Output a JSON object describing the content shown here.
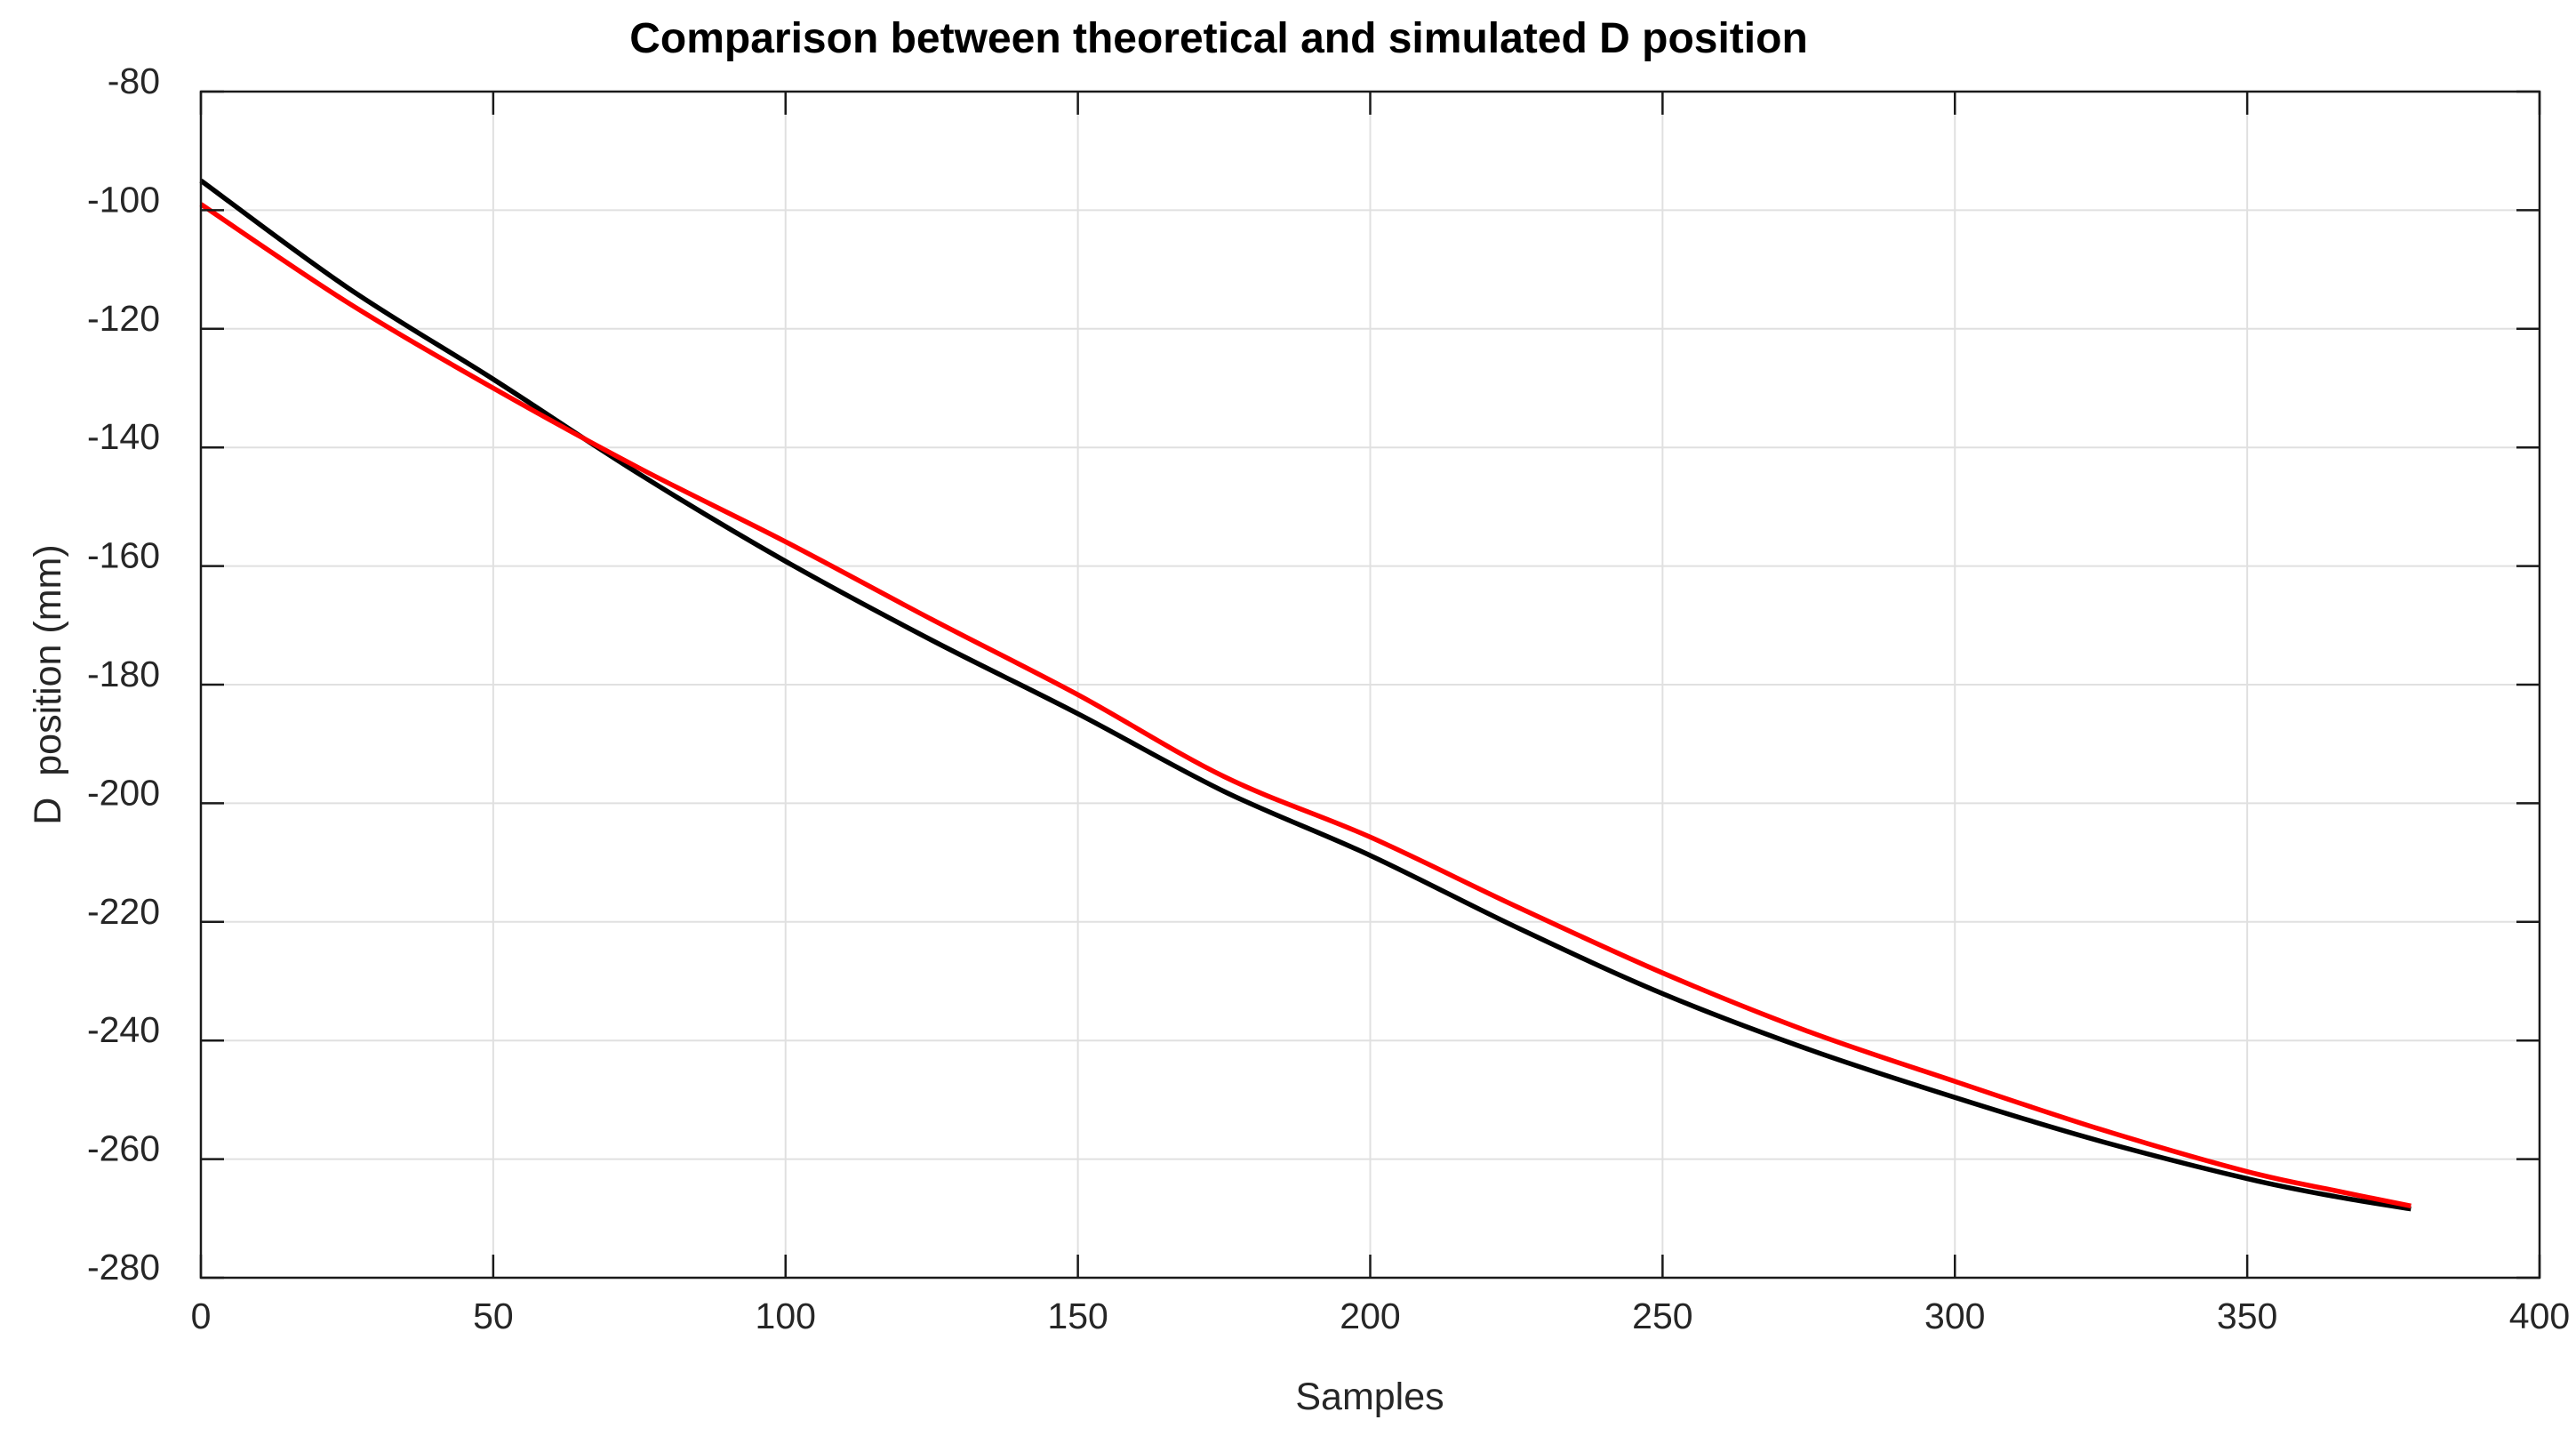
{
  "figure": {
    "background": "#ffffff",
    "title": "Comparison between theoretical and simulated D position",
    "xlabel": "Samples",
    "ylabel": "D  position (mm)"
  },
  "chart_data": {
    "type": "line",
    "title": "Comparison between theoretical and simulated D position",
    "xlabel": "Samples",
    "ylabel": "D  position (mm)",
    "xlim": [
      0,
      400
    ],
    "ylim": [
      -280,
      -80
    ],
    "x_ticks": [
      0,
      50,
      100,
      150,
      200,
      250,
      300,
      350,
      400
    ],
    "y_ticks": [
      -280,
      -260,
      -240,
      -220,
      -200,
      -180,
      -160,
      -140,
      -120,
      -100,
      -80
    ],
    "grid": true,
    "legend": false,
    "box": true,
    "colors": {
      "axis": "#1a1a1a",
      "tick_label": "#262626",
      "grid": "#e0e0e0",
      "title": "#000000"
    },
    "series": [
      {
        "name": "theoretical",
        "color": "#000000",
        "x": [
          0,
          25,
          50,
          75,
          100,
          125,
          150,
          175,
          200,
          225,
          250,
          275,
          300,
          325,
          350,
          365,
          378
        ],
        "y": [
          -95.0,
          -113.0,
          -128.5,
          -144.5,
          -159.2,
          -172.5,
          -184.9,
          -198.0,
          -208.8,
          -220.9,
          -232.1,
          -241.5,
          -249.6,
          -257.0,
          -263.3,
          -266.3,
          -268.4
        ]
      },
      {
        "name": "simulated",
        "color": "#ff0000",
        "x": [
          0,
          25,
          50,
          75,
          100,
          125,
          150,
          175,
          200,
          225,
          250,
          275,
          300,
          325,
          350,
          365,
          378
        ],
        "y": [
          -99.0,
          -115.5,
          -130.0,
          -143.5,
          -155.9,
          -169.0,
          -181.7,
          -195.5,
          -205.7,
          -217.4,
          -228.6,
          -238.5,
          -246.9,
          -255.0,
          -262.1,
          -265.3,
          -267.9
        ]
      }
    ]
  }
}
